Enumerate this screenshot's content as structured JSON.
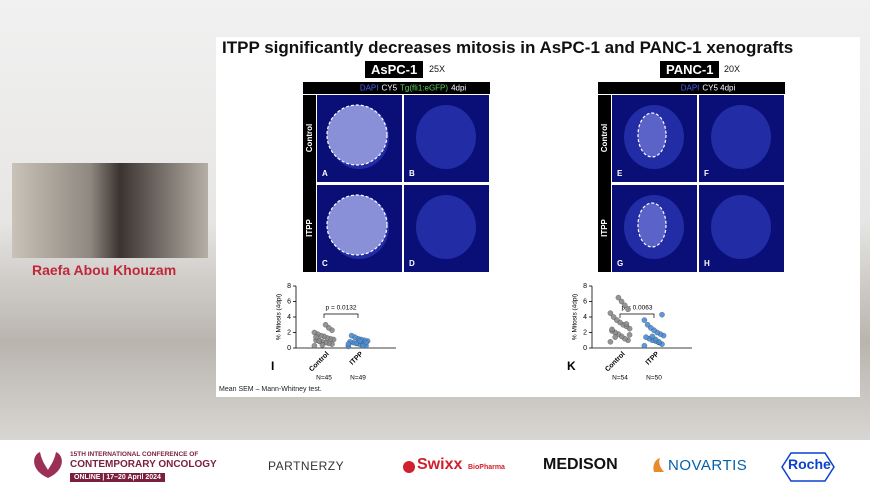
{
  "speaker": {
    "name": "Raefa Abou Khouzam"
  },
  "slide": {
    "title": "ITPP significantly decreases mitosis in AsPC-1 and PANC-1 xenografts",
    "footnote": "Mean SEM – Mann-Whitney test.",
    "figures": [
      {
        "cell_line": "AsPC-1",
        "magnification": "25X",
        "stain": [
          "DAPI",
          "CY5",
          "Tg(fli1:eGFP)",
          "4dpi"
        ],
        "rows": [
          "Control",
          "ITPP"
        ],
        "panels": [
          "A",
          "B",
          "C",
          "D"
        ]
      },
      {
        "cell_line": "PANC-1",
        "magnification": "20X",
        "stain": [
          "DAPI",
          "CY5 4dpi"
        ],
        "rows": [
          "Control",
          "ITPP"
        ],
        "panels": [
          "E",
          "F",
          "G",
          "H"
        ]
      }
    ],
    "plots": [
      {
        "type": "scatter",
        "letter": "I",
        "ylabel": "% Mitosis (4dpi)",
        "ylim": [
          0,
          8
        ],
        "yticks": [
          0,
          2,
          4,
          6,
          8
        ],
        "categories": [
          "Control",
          "ITPP"
        ],
        "n_labels": [
          "N=45",
          "N=49"
        ],
        "p_label": "p = 0.0132",
        "series": [
          {
            "color": "#8a8a8a",
            "values": [
              0.3,
              0.5,
              0.6,
              0.7,
              0.8,
              0.9,
              1.0,
              1.1,
              1.2,
              1.3,
              1.5,
              1.6,
              1.8,
              2.0,
              2.3,
              2.6,
              3.0,
              0.4,
              0.9,
              1.4
            ]
          },
          {
            "color": "#4a8fd8",
            "values": [
              0.2,
              0.3,
              0.4,
              0.5,
              0.6,
              0.7,
              0.8,
              0.9,
              1.0,
              1.1,
              1.2,
              1.4,
              1.6,
              0.5,
              0.7,
              0.3,
              0.9,
              0.6
            ]
          }
        ]
      },
      {
        "type": "scatter",
        "letter": "K",
        "ylabel": "% Mitosis (4dpi)",
        "ylim": [
          0,
          8
        ],
        "yticks": [
          0,
          2,
          4,
          6,
          8
        ],
        "categories": [
          "Control",
          "ITPP"
        ],
        "n_labels": [
          "N=54",
          "N=50"
        ],
        "p_label": "p = 0.0063",
        "series": [
          {
            "color": "#8a8a8a",
            "values": [
              0.8,
              1.0,
              1.2,
              1.5,
              1.8,
              2.0,
              2.2,
              2.5,
              2.8,
              3.0,
              3.3,
              3.6,
              4.0,
              4.5,
              5.0,
              5.5,
              6.0,
              6.5,
              1.4,
              2.4,
              1.7,
              3.1
            ]
          },
          {
            "color": "#4a8fd8",
            "values": [
              0.3,
              0.5,
              0.7,
              0.9,
              1.0,
              1.2,
              1.4,
              1.6,
              1.8,
              2.0,
              2.3,
              2.6,
              3.0,
              3.6,
              4.3,
              0.8,
              1.1,
              1.5
            ]
          }
        ]
      }
    ]
  },
  "footer": {
    "conference": [
      "15TH INTERNATIONAL CONFERENCE OF",
      "CONTEMPORARY ONCOLOGY",
      "ONLINE | 17–20 April 2024"
    ],
    "partners_label": "PARTNERZY",
    "sponsors": [
      "Swixx",
      "BioPharma",
      "MEDISON",
      "NOVARTIS",
      "Roche"
    ]
  }
}
